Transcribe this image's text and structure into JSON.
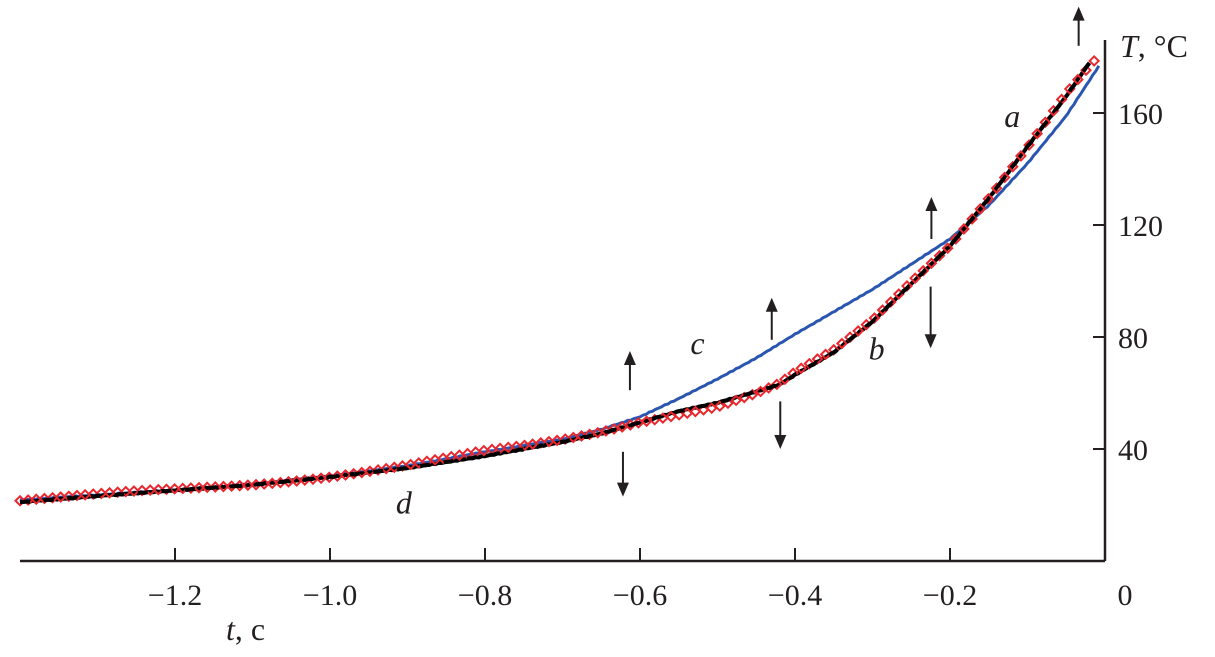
{
  "chart_data": {
    "type": "line",
    "xlabel_var": "t",
    "xlabel_unit": ", c",
    "ylabel_var": "T",
    "ylabel_unit": ", °C",
    "xlim": [
      -1.4,
      0
    ],
    "ylim": [
      0,
      186
    ],
    "x_ticks": [
      "−1.2",
      "−1.0",
      "−0.8",
      "−0.6",
      "−0.4",
      "−0.2",
      "0"
    ],
    "x_tick_values": [
      -1.2,
      -1.0,
      -0.8,
      -0.6,
      -0.4,
      -0.2,
      0
    ],
    "y_ticks": [
      "40",
      "80",
      "120",
      "160"
    ],
    "y_tick_values": [
      40,
      80,
      120,
      160
    ],
    "grid": false,
    "series": [
      {
        "style": "markers",
        "color": "#e8282e",
        "x": [
          -1.4,
          -1.35,
          -1.3,
          -1.25,
          -1.2,
          -1.15,
          -1.1,
          -1.05,
          -1.0,
          -0.95,
          -0.9,
          -0.85,
          -0.8,
          -0.75,
          -0.7,
          -0.65,
          -0.6,
          -0.55,
          -0.5,
          -0.45,
          -0.42,
          -0.4,
          -0.35,
          -0.3,
          -0.25,
          -0.2,
          -0.15,
          -0.1,
          -0.05,
          -0.005
        ],
        "y": [
          21.8,
          22.7,
          23.6,
          24.5,
          25.4,
          26.4,
          27.5,
          28.9,
          30.4,
          32.1,
          34.0,
          36.4,
          39.0,
          41.0,
          43.5,
          46.5,
          50.0,
          52.5,
          55.0,
          59.5,
          63.0,
          67.0,
          75.0,
          86.0,
          100.0,
          113.0,
          130.0,
          148.0,
          167.0,
          181.0
        ]
      },
      {
        "style": "line",
        "color": "#000000",
        "x": [
          -1.4,
          -1.3,
          -1.2,
          -1.1,
          -1.0,
          -0.9,
          -0.8,
          -0.7,
          -0.65,
          -0.6,
          -0.55,
          -0.5,
          -0.45,
          -0.42,
          -0.4,
          -0.35,
          -0.3,
          -0.25,
          -0.2,
          -0.15,
          -0.1,
          -0.05,
          -0.02
        ],
        "y": [
          21.0,
          23.2,
          25.2,
          27.2,
          30.0,
          33.2,
          37.5,
          42.5,
          45.5,
          49.5,
          53.5,
          56.5,
          60.5,
          63.0,
          66.5,
          74.5,
          85.5,
          99.0,
          112.5,
          129.5,
          148.0,
          166.0,
          178.0
        ]
      },
      {
        "style": "line",
        "color": "#2a56b0",
        "x": [
          -1.4,
          -1.3,
          -1.2,
          -1.1,
          -1.0,
          -0.9,
          -0.8,
          -0.7,
          -0.65,
          -0.6,
          -0.55,
          -0.5,
          -0.45,
          -0.4,
          -0.35,
          -0.3,
          -0.25,
          -0.2,
          -0.15,
          -0.1,
          -0.05,
          -0.005
        ],
        "y": [
          21.8,
          23.6,
          25.4,
          27.5,
          30.4,
          34.0,
          39.0,
          43.5,
          47.0,
          51.5,
          58.0,
          65.0,
          72.5,
          81.0,
          89.0,
          97.0,
          106.0,
          115.0,
          127.0,
          142.0,
          159.0,
          178.0
        ]
      }
    ],
    "annotations": [
      {
        "text": "a",
        "x": -0.13,
        "y": 155
      },
      {
        "text": "b",
        "x": -0.305,
        "y": 72
      },
      {
        "text": "c",
        "x": -0.535,
        "y": 74
      },
      {
        "text": "d",
        "x": -0.915,
        "y": 17
      }
    ],
    "arrows": [
      {
        "x": -0.613,
        "from": 61,
        "to": 75,
        "dir": "up"
      },
      {
        "x": -0.43,
        "from": 79,
        "to": 94,
        "dir": "up"
      },
      {
        "x": -0.224,
        "from": 115,
        "to": 130,
        "dir": "up"
      },
      {
        "x": -0.034,
        "from": 184,
        "to": 198,
        "dir": "up"
      },
      {
        "x": -0.622,
        "from": 39,
        "to": 23,
        "dir": "down"
      },
      {
        "x": -0.419,
        "from": 57,
        "to": 40,
        "dir": "down"
      },
      {
        "x": -0.225,
        "from": 98,
        "to": 76,
        "dir": "down"
      }
    ]
  }
}
